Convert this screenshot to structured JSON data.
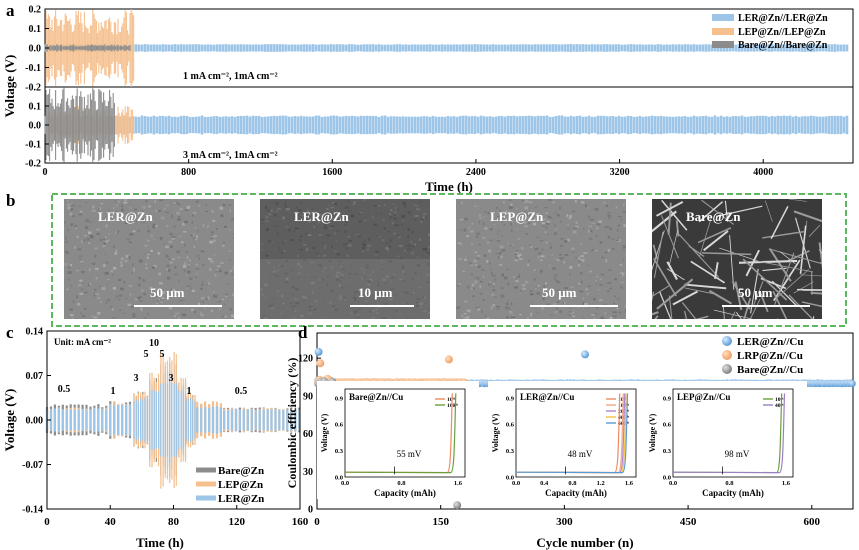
{
  "panel_labels": {
    "a": "a",
    "b": "b",
    "c": "c",
    "d": "d"
  },
  "colors": {
    "ler": "#9cc5e8",
    "lep": "#f5c08e",
    "bare": "#8c8c8c",
    "frame_green": "#5cb85c",
    "orange": "#f0a068"
  },
  "chart_data": [
    {
      "type": "line",
      "panel": "a",
      "ylabel": "Voltage (V)",
      "xlabel": "Time (h)",
      "xlim": [
        0,
        4500
      ],
      "xticks": [
        "0",
        "800",
        "1600",
        "2400",
        "3200",
        "4000"
      ],
      "subplots": [
        {
          "ylim": [
            -0.2,
            0.2
          ],
          "yticks": [
            "0.2",
            "0.1",
            "0.0",
            "-0.1",
            "-0.2"
          ],
          "annotation": "1 mA cm⁻², 1mA cm⁻²",
          "series": [
            {
              "name": "LER@Zn//LER@Zn",
              "end_time": 4480,
              "amplitude": 0.02
            },
            {
              "name": "LEP@Zn//LEP@Zn",
              "end_time": 500,
              "amplitude": 0.2
            },
            {
              "name": "Bare@Zn//Bare@Zn",
              "end_time": 480,
              "amplitude": 0.02
            }
          ]
        },
        {
          "ylim": [
            -0.2,
            0.2
          ],
          "yticks": [
            "0.2",
            "0.1",
            "0.0",
            "-0.1",
            "-0.2"
          ],
          "annotation": "3 mA cm⁻², 1mA cm⁻²",
          "series": [
            {
              "name": "LER@Zn//LER@Zn",
              "end_time": 4480,
              "amplitude": 0.05
            },
            {
              "name": "LEP@Zn//LEP@Zn",
              "end_time": 500,
              "amplitude": 0.1
            },
            {
              "name": "Bare@Zn//Bare@Zn",
              "end_time": 390,
              "amplitude": 0.2
            }
          ]
        }
      ],
      "legend": [
        "LER@Zn//LER@Zn",
        "LEP@Zn//LEP@Zn",
        "Bare@Zn//Bare@Zn"
      ]
    },
    {
      "type": "line",
      "panel": "c",
      "annotation": "Unit: mA cm⁻²",
      "ylabel": "Voltage (V)",
      "xlabel": "Time (h)",
      "xlim": [
        0,
        160
      ],
      "ylim": [
        -0.14,
        0.14
      ],
      "xticks": [
        "0",
        "40",
        "80",
        "120",
        "160"
      ],
      "yticks": [
        "0.14",
        "0.07",
        "0.00",
        "-0.07",
        "-0.14"
      ],
      "rate_labels": [
        "0.5",
        "1",
        "3",
        "5",
        "10",
        "5",
        "3",
        "1",
        "0.5"
      ],
      "rate_steps": [
        {
          "rate": 0.5,
          "start": 0,
          "end": 40,
          "ler": 0.02,
          "lep": 0.02,
          "bare": 0.025
        },
        {
          "rate": 1,
          "start": 40,
          "end": 55,
          "ler": 0.025,
          "lep": 0.03,
          "bare": 0.03
        },
        {
          "rate": 3,
          "start": 55,
          "end": 65,
          "ler": 0.035,
          "lep": 0.045,
          "bare": 0.045
        },
        {
          "rate": 5,
          "start": 65,
          "end": 72,
          "ler": 0.05,
          "lep": 0.075,
          "bare": 0.07
        },
        {
          "rate": 10,
          "start": 72,
          "end": 82,
          "ler": 0.07,
          "lep": 0.11,
          "bare": 0.09
        },
        {
          "rate": 5,
          "start": 82,
          "end": 88,
          "ler": 0.05,
          "lep": 0.07,
          "bare": 0.06
        },
        {
          "rate": 3,
          "start": 88,
          "end": 95,
          "ler": 0.035,
          "lep": 0.045,
          "bare": 0.04
        },
        {
          "rate": 1,
          "start": 95,
          "end": 112,
          "ler": 0.022,
          "lep": 0.03,
          "bare": 0.025
        },
        {
          "rate": 0.5,
          "start": 112,
          "end": 160,
          "ler": 0.018,
          "lep": 0.02,
          "bare": 0.02
        }
      ],
      "legend": [
        "Bare@Zn",
        "LEP@Zn",
        "LER@Zn"
      ]
    },
    {
      "type": "scatter",
      "panel": "d",
      "ylabel": "Coulombic efficiency (%)",
      "xlabel": "Cycle number (n)",
      "xlim": [
        0,
        650
      ],
      "ylim": [
        0,
        140
      ],
      "xticks": [
        "0",
        "150",
        "300",
        "450",
        "600"
      ],
      "yticks": [
        "0",
        "30",
        "60",
        "90",
        "120"
      ],
      "series": [
        {
          "name": "LER@Zn//Cu",
          "n_cycles": 650,
          "ce": 100,
          "outliers": [
            [
              325,
              123
            ],
            [
              2,
              125
            ]
          ]
        },
        {
          "name": "LRP@Zn//Cu",
          "n_cycles": 180,
          "ce": 101,
          "outliers": [
            [
              160,
              119
            ],
            [
              4,
              116
            ]
          ]
        },
        {
          "name": "Bare@Zn//Cu",
          "n_cycles": 175,
          "ce": 99,
          "outliers": [
            [
              168,
              30
            ],
            [
              170,
              3
            ]
          ]
        }
      ],
      "insets": [
        {
          "title": "Bare@Zn//Cu",
          "voltage_label": "Voltage (V)",
          "capacity_label": "Capacity (mAh)",
          "overpotential": "55 mV",
          "legend": [
            "10ᵗʰ",
            "100ᵗʰ"
          ],
          "xticks": [
            "0.0",
            "0.8",
            "1.6"
          ],
          "yticks": [
            "0.0",
            "0.3",
            "0.6",
            "0.9"
          ]
        },
        {
          "title": "LER@Zn//Cu",
          "voltage_label": "Voltage (V)",
          "capacity_label": "Capacity (mAh)",
          "overpotential": "48 mV",
          "legend": [
            "10ᵗʰ",
            "100ᵗʰ",
            "200ᵗʰ",
            "400ᵗʰ",
            "600ᵗʰ"
          ],
          "xticks": [
            "0.0",
            "0.4",
            "0.8",
            "1.2",
            "1.6"
          ],
          "yticks": [
            "0.0",
            "0.3",
            "0.6",
            "0.9"
          ]
        },
        {
          "title": "LEP@Zn//Cu",
          "voltage_label": "Voltage (V)",
          "capacity_label": "Capacity (mAh)",
          "overpotential": "98 mV",
          "legend": [
            "10ᵗʰ",
            "40ᵗʰ"
          ],
          "xticks": [
            "0.0",
            "0.8",
            "1.6"
          ],
          "yticks": [
            "0.0",
            "0.3",
            "0.6",
            "0.9"
          ]
        }
      ],
      "legend": [
        "LER@Zn//Cu",
        "LRP@Zn//Cu",
        "Bare@Zn//Cu"
      ]
    }
  ],
  "sem_images": [
    {
      "label": "LER@Zn",
      "scale": "50 μm",
      "tone": "light"
    },
    {
      "label": "LER@Zn",
      "scale": "10 μm",
      "tone": "dark"
    },
    {
      "label": "LEP@Zn",
      "scale": "50 μm",
      "tone": "light"
    },
    {
      "label": "Bare@Zn",
      "scale": "50 μm",
      "tone": "fibrous"
    }
  ]
}
